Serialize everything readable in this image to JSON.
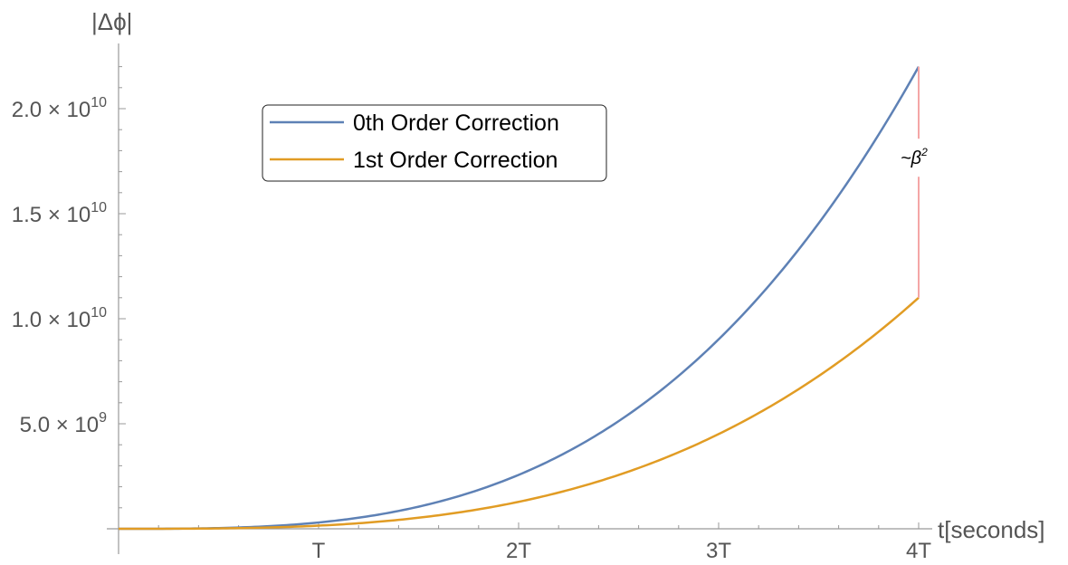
{
  "chart_data": {
    "type": "line",
    "xlabel": "t[seconds]",
    "ylabel": "|Δϕ|",
    "x_ticks": [
      {
        "value": 1,
        "label": "T"
      },
      {
        "value": 2,
        "label": "2T"
      },
      {
        "value": 3,
        "label": "3T"
      },
      {
        "value": 4,
        "label": "4T"
      }
    ],
    "y_ticks": [
      {
        "value": 5000000000,
        "mantissa": "5.0",
        "times": "×",
        "base": "10",
        "exp": "9"
      },
      {
        "value": 10000000000,
        "mantissa": "1.0",
        "times": "×",
        "base": "10",
        "exp": "10"
      },
      {
        "value": 15000000000,
        "mantissa": "1.5",
        "times": "×",
        "base": "10",
        "exp": "10"
      },
      {
        "value": 20000000000,
        "mantissa": "2.0",
        "times": "×",
        "base": "10",
        "exp": "10"
      }
    ],
    "xlim": [
      0,
      4
    ],
    "ylim": [
      0,
      23000000000
    ],
    "series": [
      {
        "name": "0th Order Correction",
        "color": "#5e81b5",
        "x": [
          0,
          0.25,
          0.5,
          0.75,
          1,
          1.25,
          1.5,
          1.75,
          2,
          2.25,
          2.5,
          2.75,
          3,
          3.25,
          3.5,
          3.75,
          4
        ],
        "values": [
          0,
          1300000,
          21600000,
          109000000,
          344000000,
          840000000,
          1740000000,
          3230000000,
          2800000000,
          4470000000,
          6770000000,
          9830000000,
          9300000000,
          12700000000,
          15500000000,
          18600000000,
          22000000000
        ]
      },
      {
        "name": "1st Order Correction",
        "color": "#e19c24",
        "x": [
          0,
          0.25,
          0.5,
          0.75,
          1,
          1.25,
          1.5,
          1.75,
          2,
          2.25,
          2.5,
          2.75,
          3,
          3.25,
          3.5,
          3.75,
          4
        ],
        "values": [
          0,
          700000,
          10800000,
          54000000,
          172000000,
          420000000,
          870000000,
          1610000000,
          1400000000,
          2230000000,
          3380000000,
          4910000000,
          4650000000,
          6350000000,
          7750000000,
          9300000000,
          11000000000
        ]
      }
    ],
    "annotation": {
      "text": "~β",
      "superscript": "2",
      "color": "#f4a6a6",
      "x": 4
    },
    "legend": {
      "placement": "top-center-left"
    },
    "grid": false
  }
}
